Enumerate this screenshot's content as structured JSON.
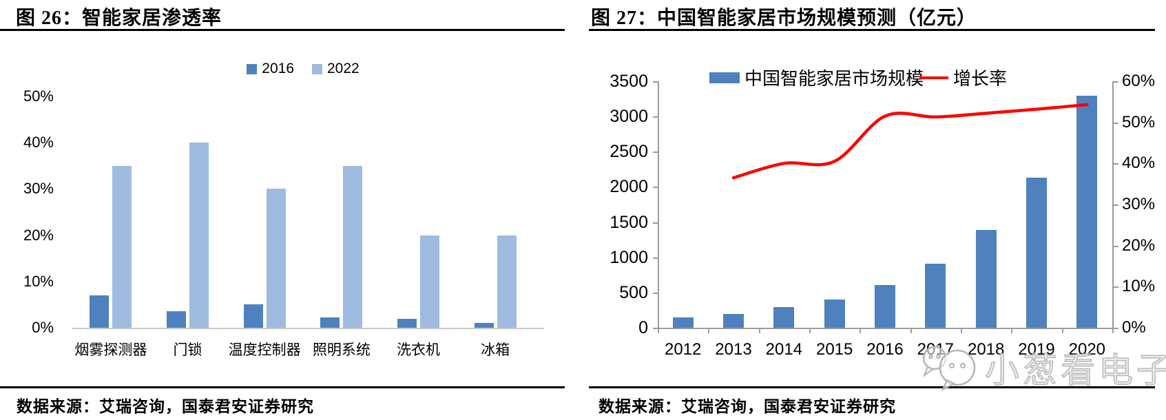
{
  "left_panel": {
    "title": "图 26：智能家居渗透率",
    "source": "数据来源：艾瑞咨询，国泰君安证券研究"
  },
  "right_panel": {
    "title": "图 27：中国智能家居市场规模预测（亿元）",
    "source": "数据来源：艾瑞咨询，国泰君安证券研究",
    "watermark": "小葱看电子"
  },
  "colors": {
    "bar_dark": "#4E81BD",
    "bar_light": "#9FBBDF",
    "line_red": "#FF0000",
    "axis_gray": "#9c9c9c",
    "baseline_gray": "#c8c8c8"
  },
  "chart_data": [
    {
      "type": "bar",
      "title": "智能家居渗透率",
      "categories": [
        "烟雾探测器",
        "门锁",
        "温度控制器",
        "照明系统",
        "洗衣机",
        "冰箱"
      ],
      "series": [
        {
          "name": "2016",
          "color": "#4E81BD",
          "values": [
            7,
            3.5,
            5,
            2.2,
            2,
            1
          ]
        },
        {
          "name": "2022",
          "color": "#9FBBDF",
          "values": [
            35,
            40,
            30,
            35,
            20,
            20
          ]
        }
      ],
      "y_unit": "%",
      "ylim": [
        0,
        50
      ],
      "y_ticks": [
        "0%",
        "10%",
        "20%",
        "30%",
        "40%",
        "50%"
      ],
      "legend_position": "top",
      "grid": false
    },
    {
      "type": "bar+line",
      "title": "中国智能家居市场规模预测（亿元）",
      "categories": [
        "2012",
        "2013",
        "2014",
        "2015",
        "2016",
        "2017",
        "2018",
        "2019",
        "2020"
      ],
      "series": [
        {
          "name": "中国智能家居市场规模",
          "type": "bar",
          "axis": "left",
          "color": "#4E81BD",
          "values": [
            150,
            200,
            290,
            400,
            605,
            910,
            1390,
            2130,
            3290
          ]
        },
        {
          "name": "增长率",
          "type": "line",
          "axis": "right",
          "color": "#FF0000",
          "values": [
            null,
            36.5,
            40,
            40.5,
            51.5,
            51.3,
            52.2,
            53.2,
            54.3
          ]
        }
      ],
      "left_axis": {
        "lim": [
          0,
          3500
        ],
        "ticks": [
          0,
          500,
          1000,
          1500,
          2000,
          2500,
          3000,
          3500
        ]
      },
      "right_axis": {
        "lim": [
          0,
          60
        ],
        "ticks": [
          "0%",
          "10%",
          "20%",
          "30%",
          "40%",
          "50%",
          "60%"
        ]
      },
      "legend_position": "top",
      "grid": false
    }
  ]
}
